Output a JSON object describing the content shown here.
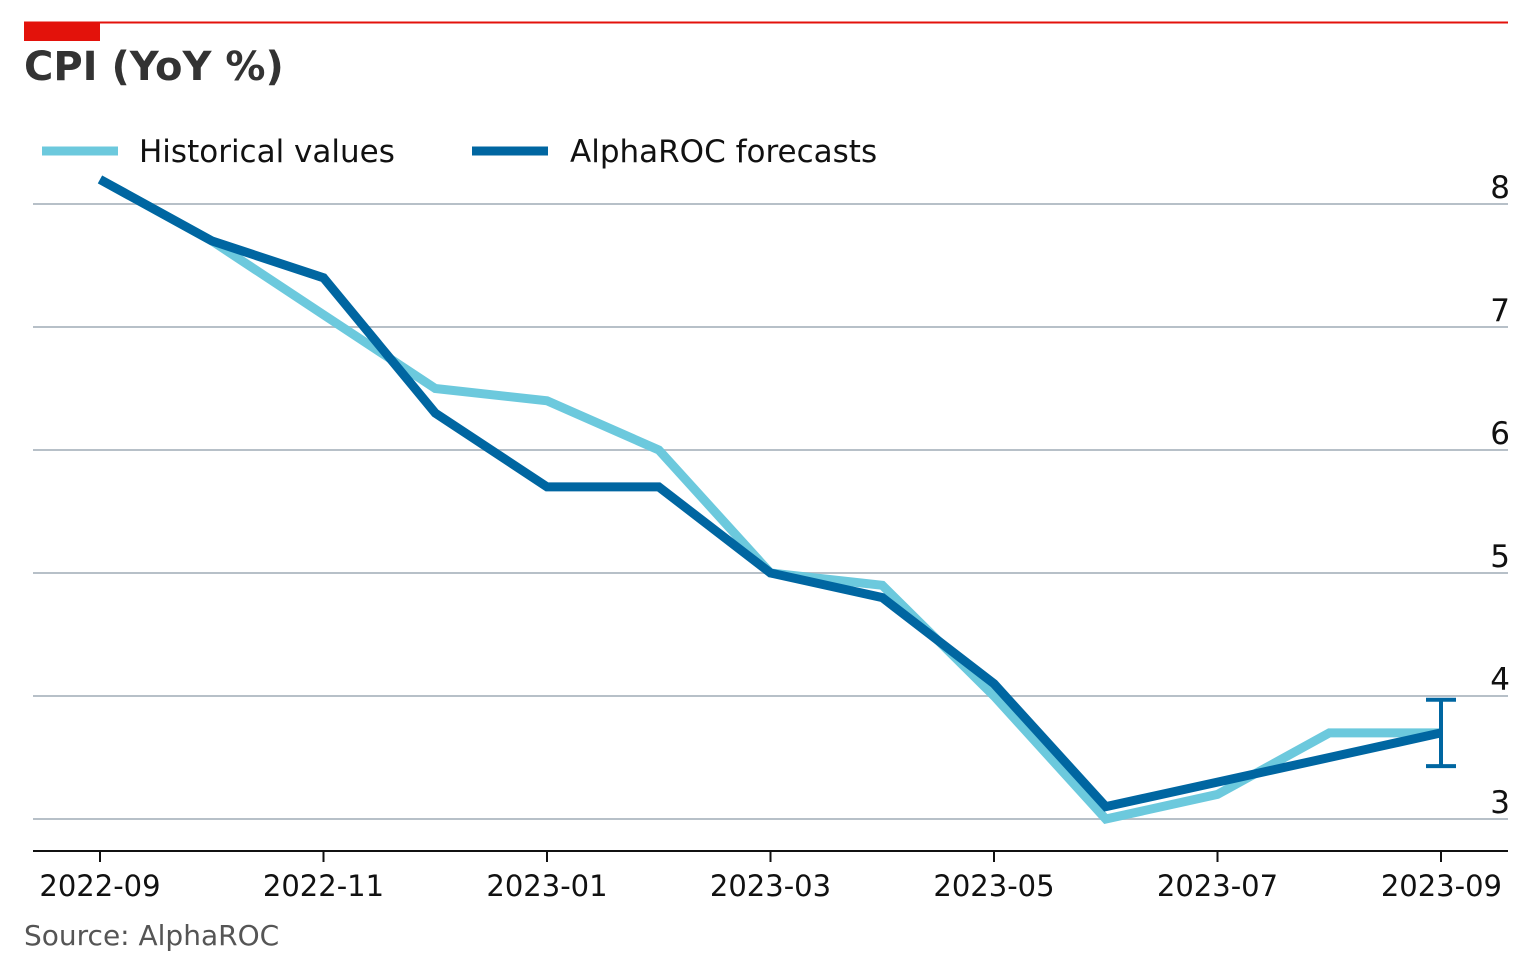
{
  "chart_data": {
    "type": "line",
    "title": "CPI (YoY %)",
    "source": "Source: AlphaROC",
    "x": [
      "2022-09",
      "2022-10",
      "2022-11",
      "2022-12",
      "2023-01",
      "2023-02",
      "2023-03",
      "2023-04",
      "2023-05",
      "2023-06",
      "2023-07",
      "2023-08",
      "2023-09"
    ],
    "series": [
      {
        "name": "Historical values",
        "color": "#6cc9dd",
        "values": [
          8.2,
          7.7,
          7.1,
          6.5,
          6.4,
          6.0,
          5.0,
          4.9,
          4.0,
          3.0,
          3.2,
          3.7,
          3.7
        ]
      },
      {
        "name": "AlphaROC forecasts",
        "color": "#0066a1",
        "values": [
          8.2,
          7.7,
          7.4,
          6.3,
          5.7,
          5.7,
          5.0,
          4.8,
          4.1,
          3.1,
          3.3,
          3.5,
          3.7
        ]
      }
    ],
    "error_bar": {
      "x": "2023-09",
      "center": 3.7,
      "low": 3.43,
      "high": 3.97,
      "color": "#0066a1"
    },
    "xticks": [
      "2022-09",
      "2022-11",
      "2023-01",
      "2023-03",
      "2023-05",
      "2023-07",
      "2023-09"
    ],
    "yticks": [
      3,
      4,
      5,
      6,
      7,
      8
    ],
    "ylim": [
      2.75,
      8.3
    ],
    "ylabel": "",
    "xlabel": "",
    "grid": "horizontal",
    "y_axis_position": "right",
    "legend": "top-left",
    "accent_color": "#e3120b",
    "grid_color": "#b7c0c8"
  }
}
